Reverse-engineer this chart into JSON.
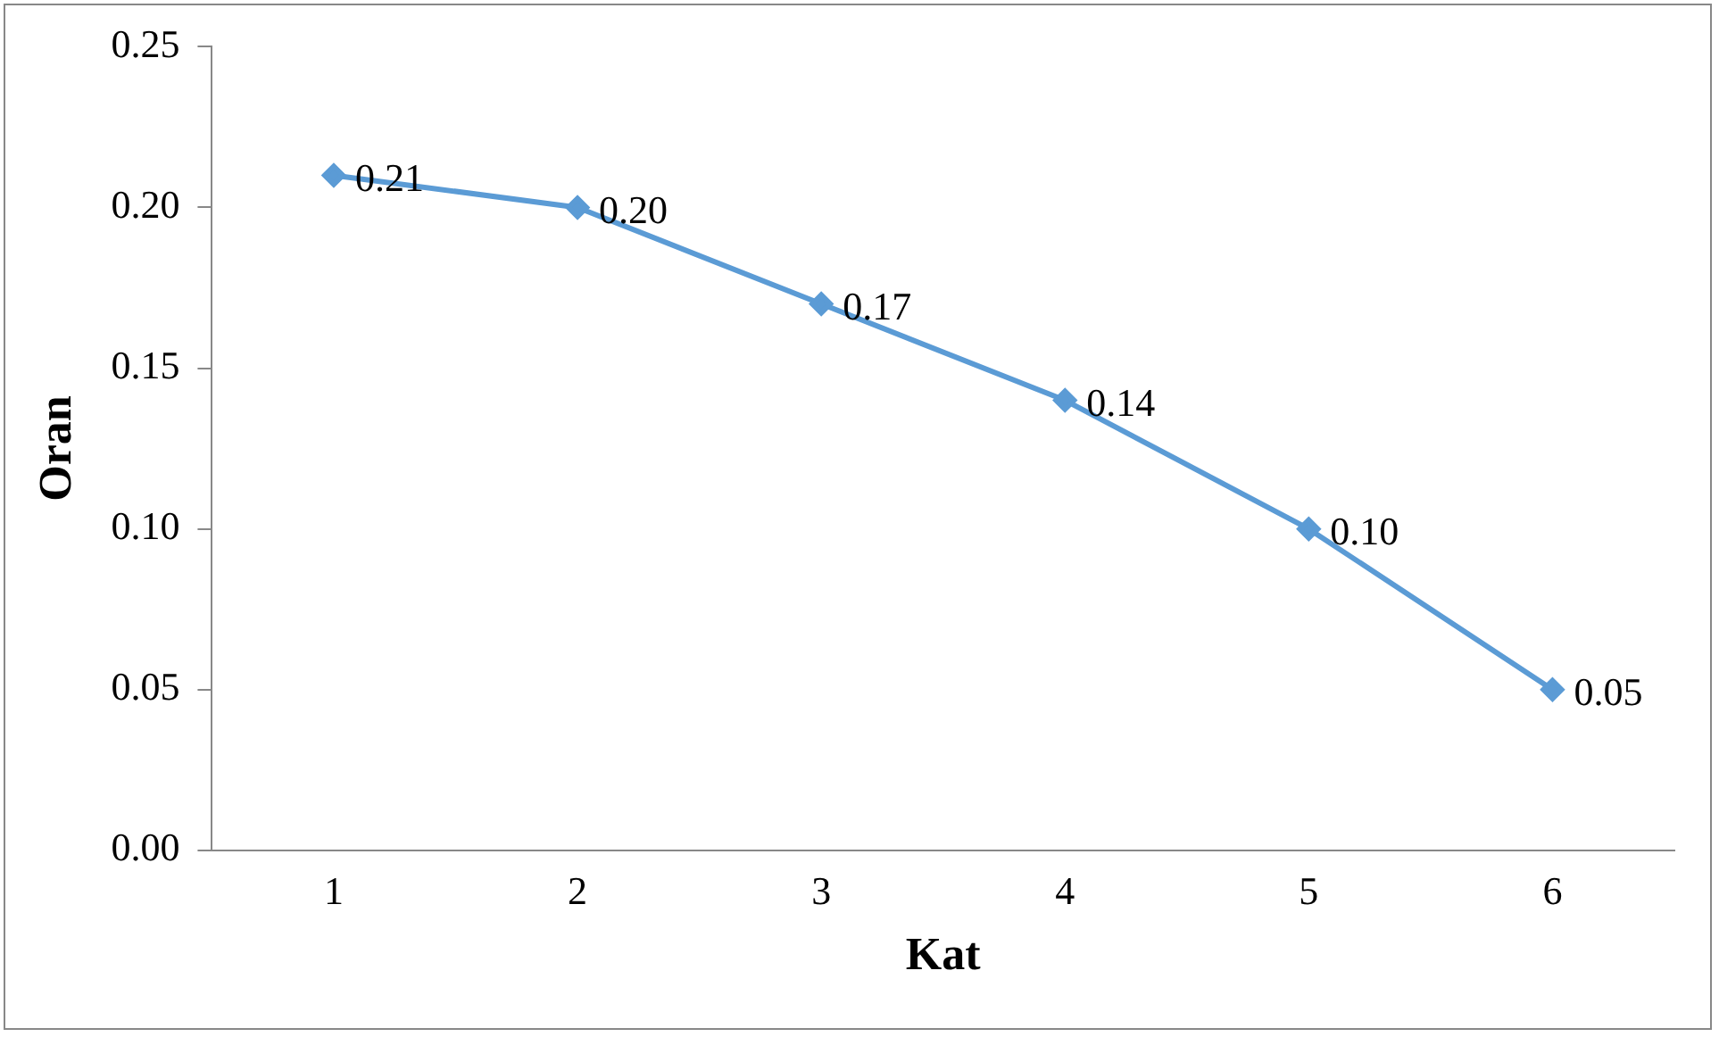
{
  "chart_data": {
    "type": "line",
    "xlabel": "Kat",
    "ylabel": "Oran",
    "categories": [
      "1",
      "2",
      "3",
      "4",
      "5",
      "6"
    ],
    "series": [
      {
        "color": "#5b9bd5",
        "values": [
          0.21,
          0.2,
          0.17,
          0.14,
          0.1,
          0.05
        ],
        "value_labels": [
          "0.21",
          "0.20",
          "0.17",
          "0.14",
          "0.10",
          "0.05"
        ]
      }
    ],
    "ylim": [
      0,
      0.25
    ],
    "yticks": [
      {
        "value": 0,
        "label": "0.00"
      },
      {
        "value": 0.05,
        "label": "0.05"
      },
      {
        "value": 0.1,
        "label": "0.10"
      },
      {
        "value": 0.15,
        "label": "0.15"
      },
      {
        "value": 0.2,
        "label": "0.20"
      },
      {
        "value": 0.25,
        "label": "0.25"
      }
    ],
    "grid": false,
    "legend": false,
    "marker": "diamond",
    "line_style": "solid"
  }
}
